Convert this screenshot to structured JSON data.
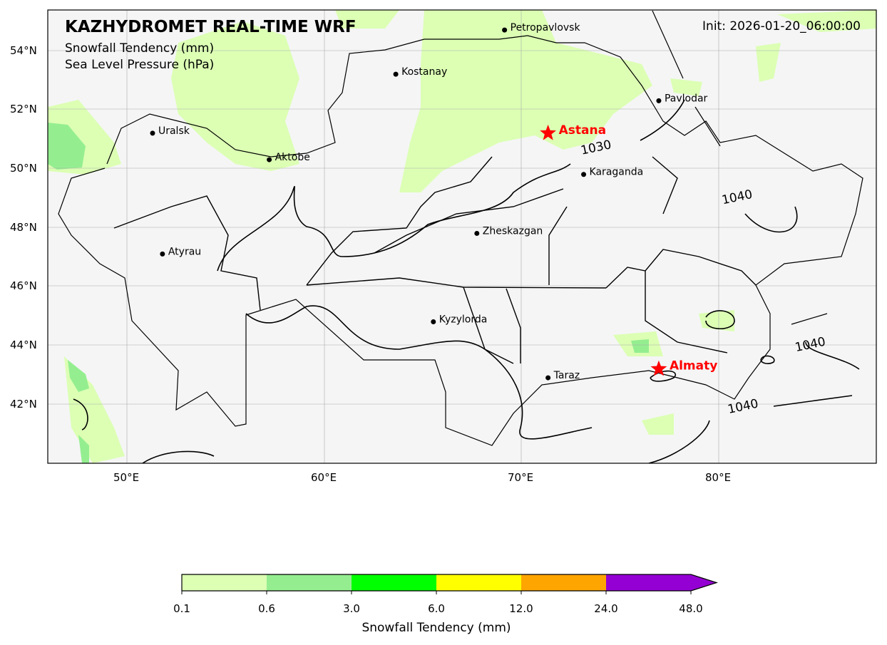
{
  "header": {
    "title": "KAZHYDROMET REAL-TIME WRF",
    "subtitle1": "Snowfall Tendency  (mm)",
    "subtitle2": "Sea Level Pressure  (hPa)",
    "init": "Init: 2026-01-20_06:00:00"
  },
  "axes": {
    "lon_ticks": [
      "50°E",
      "60°E",
      "70°E",
      "80°E"
    ],
    "lon_values": [
      50,
      60,
      70,
      80
    ],
    "lat_ticks": [
      "54°N",
      "52°N",
      "50°N",
      "48°N",
      "46°N",
      "44°N",
      "42°N"
    ],
    "lat_values": [
      54,
      52,
      50,
      48,
      46,
      44,
      42
    ],
    "extent": {
      "lon": [
        46.0,
        87.9
      ],
      "lat": [
        40.0,
        55.38
      ]
    }
  },
  "cities": [
    {
      "name": "Uralsk",
      "lon": 51.3,
      "lat": 51.2,
      "capital": false
    },
    {
      "name": "Aktobe",
      "lon": 57.2,
      "lat": 50.3,
      "capital": false
    },
    {
      "name": "Kostanay",
      "lon": 63.6,
      "lat": 53.2,
      "capital": false
    },
    {
      "name": "Petropavlovsk",
      "lon": 69.1,
      "lat": 54.7,
      "capital": false
    },
    {
      "name": "Pavlodar",
      "lon": 76.9,
      "lat": 52.3,
      "capital": false
    },
    {
      "name": "Astana",
      "lon": 71.3,
      "lat": 51.2,
      "capital": true
    },
    {
      "name": "Karaganda",
      "lon": 73.1,
      "lat": 49.8,
      "capital": false
    },
    {
      "name": "Zheskazgan",
      "lon": 67.7,
      "lat": 47.8,
      "capital": false
    },
    {
      "name": "Atyrau",
      "lon": 51.8,
      "lat": 47.1,
      "capital": false
    },
    {
      "name": "Kyzylorda",
      "lon": 65.5,
      "lat": 44.8,
      "capital": false
    },
    {
      "name": "Taraz",
      "lon": 71.3,
      "lat": 42.9,
      "capital": false
    },
    {
      "name": "Almaty",
      "lon": 76.9,
      "lat": 43.2,
      "capital": true
    }
  ],
  "isobar_labels": [
    {
      "text": "1030",
      "lon": 72.9,
      "lat": 50.8
    },
    {
      "text": "1040",
      "lon": 80.9,
      "lat": 48.9
    },
    {
      "text": "1040",
      "lon": 84.6,
      "lat": 43.9
    },
    {
      "text": "1040",
      "lon": 81.2,
      "lat": 41.8
    }
  ],
  "colorbar": {
    "label": "Snowfall Tendency (mm)",
    "ticks": [
      "0.1",
      "0.6",
      "3.0",
      "6.0",
      "12.0",
      "24.0",
      "48.0"
    ],
    "colors": [
      "#dcffb4",
      "#94ee90",
      "#00ff00",
      "#ffff00",
      "#ffa500",
      "#9400d3"
    ]
  },
  "colors": {
    "capital": "#ff0000",
    "ocean_bg": "#f5f5f5"
  }
}
